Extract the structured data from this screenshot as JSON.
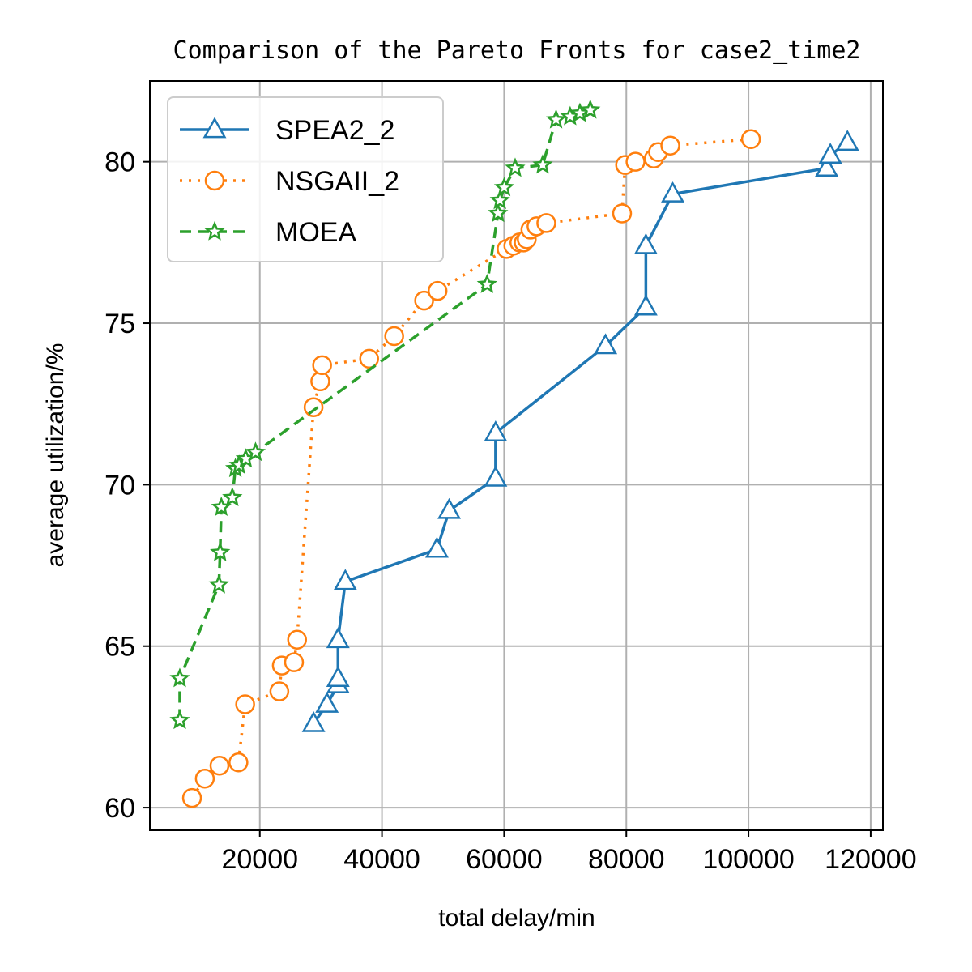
{
  "chart_data": {
    "type": "line",
    "title": "Comparison of the Pareto Fronts for case2_time2",
    "xlabel": "total delay/min",
    "ylabel": "average utilization/%",
    "xlim": [
      2000,
      122000
    ],
    "ylim": [
      59.3,
      82.5
    ],
    "xticks": [
      20000,
      40000,
      60000,
      80000,
      100000,
      120000
    ],
    "xtick_labels": [
      "20000",
      "40000",
      "60000",
      "80000",
      "100000",
      "120000"
    ],
    "yticks": [
      60,
      65,
      70,
      75,
      80
    ],
    "ytick_labels": [
      "60",
      "65",
      "70",
      "75",
      "80"
    ],
    "grid": true,
    "legend_position": "top-left",
    "series": [
      {
        "name": "SPEA2_2",
        "color": "#1f77b4",
        "line_style": "solid",
        "marker": "triangle",
        "x": [
          28800,
          31000,
          32800,
          32800,
          32800,
          34000,
          49000,
          51000,
          58600,
          58600,
          76600,
          83200,
          83200,
          87600,
          112800,
          113400,
          116200
        ],
        "y": [
          62.6,
          63.2,
          63.8,
          64.0,
          65.2,
          67.0,
          68.0,
          69.2,
          70.2,
          71.6,
          74.3,
          75.5,
          77.4,
          79.0,
          79.8,
          80.2,
          80.6
        ]
      },
      {
        "name": "NSGAII_2",
        "color": "#ff7f0e",
        "line_style": "dotted",
        "marker": "circle",
        "x": [
          8900,
          11000,
          13400,
          16500,
          17600,
          23200,
          23600,
          25600,
          26100,
          28800,
          29900,
          30200,
          37900,
          42000,
          46900,
          49100,
          60400,
          61500,
          62500,
          63200,
          63700,
          64300,
          65300,
          66900,
          79300,
          79800,
          81500,
          84500,
          85200,
          87200,
          100400
        ],
        "y": [
          60.3,
          60.9,
          61.3,
          61.4,
          63.2,
          63.6,
          64.4,
          64.5,
          65.2,
          72.4,
          73.2,
          73.7,
          73.9,
          74.6,
          75.7,
          76.0,
          77.3,
          77.4,
          77.5,
          77.5,
          77.6,
          77.9,
          78.0,
          78.1,
          78.4,
          79.9,
          80.0,
          80.1,
          80.3,
          80.5,
          80.7
        ]
      },
      {
        "name": "MOEA",
        "color": "#2ca02c",
        "line_style": "dashed",
        "marker": "star",
        "x": [
          6900,
          6900,
          13300,
          13500,
          13700,
          15500,
          16000,
          16600,
          17700,
          19300,
          57200,
          59000,
          59300,
          60000,
          61800,
          66300,
          68500,
          70800,
          72400,
          74100
        ],
        "y": [
          62.7,
          64.0,
          66.9,
          67.9,
          69.3,
          69.6,
          70.5,
          70.6,
          70.8,
          71.0,
          76.2,
          78.4,
          78.8,
          79.2,
          79.8,
          79.9,
          81.3,
          81.4,
          81.5,
          81.6
        ]
      }
    ]
  }
}
